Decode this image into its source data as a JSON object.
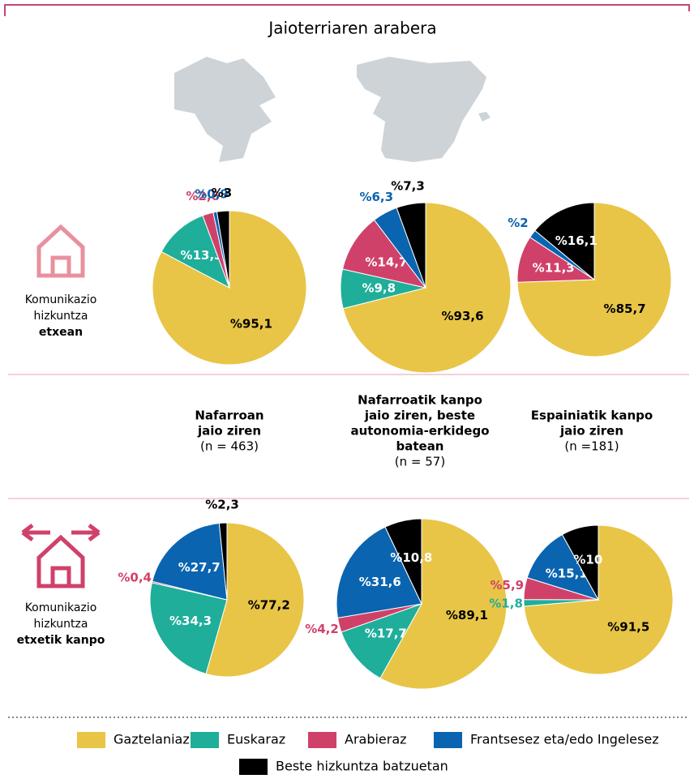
{
  "title": "Jaioterriaren arabera",
  "legend": {
    "categories": [
      "Gaztelaniaz",
      "Euskaraz",
      "Arabieraz",
      "Frantsesez eta/edo Ingelesez",
      "Beste hizkuntza batzuetan"
    ],
    "colors": [
      "#e8c547",
      "#1fae9a",
      "#d0416a",
      "#0a64b0",
      "#000000"
    ]
  },
  "rows": [
    {
      "lines": [
        "Komunikazio",
        "hizkuntza"
      ],
      "bold": "etxean"
    },
    {
      "lines": [
        "Komunikazio",
        "hizkuntza"
      ],
      "bold": "etxetik kanpo"
    }
  ],
  "columns": [
    {
      "lines": [
        "Nafarroan",
        "jaio ziren"
      ],
      "n": "(n = 463)"
    },
    {
      "lines": [
        "Nafarroatik kanpo",
        "jaio ziren, beste",
        "autonomia-erkidego",
        "batean"
      ],
      "n": "(n = 57)"
    },
    {
      "lines": [
        "Espainiatik kanpo",
        "jaio ziren"
      ],
      "n": "(n =181)"
    }
  ],
  "chart_data": [
    {
      "type": "pie",
      "values": [
        95.1,
        13.3,
        2.6,
        0.9,
        3
      ],
      "value_labels": [
        "%95,1",
        "%13,3",
        "%2,6",
        "%0,9",
        "%3"
      ]
    },
    {
      "type": "pie",
      "values": [
        93.6,
        9.8,
        14.7,
        6.3,
        7.3
      ],
      "value_labels": [
        "%93,6",
        "%9,8",
        "%14,7",
        "%6,3",
        "%7,3"
      ]
    },
    {
      "type": "pie",
      "values": [
        85.7,
        null,
        11.3,
        2,
        16.1
      ],
      "value_labels": [
        "%85,7",
        null,
        "%11,3",
        "%2",
        "%16,1"
      ]
    },
    {
      "type": "pie",
      "values": [
        77.2,
        34.3,
        0.4,
        27.7,
        2.3
      ],
      "value_labels": [
        "%77,2",
        "%34,3",
        "%0,4",
        "%27,7",
        "%2,3"
      ]
    },
    {
      "type": "pie",
      "values": [
        89.1,
        17.7,
        4.2,
        31.6,
        10.8
      ],
      "value_labels": [
        "%89,1",
        "%17,7",
        "%4,2",
        "%31,6",
        "%10,8"
      ]
    },
    {
      "type": "pie",
      "values": [
        91.5,
        1.8,
        5.9,
        15.1,
        10
      ],
      "value_labels": [
        "%91,5",
        "%1,8",
        "%5,9",
        "%15,1",
        "%10"
      ]
    }
  ]
}
